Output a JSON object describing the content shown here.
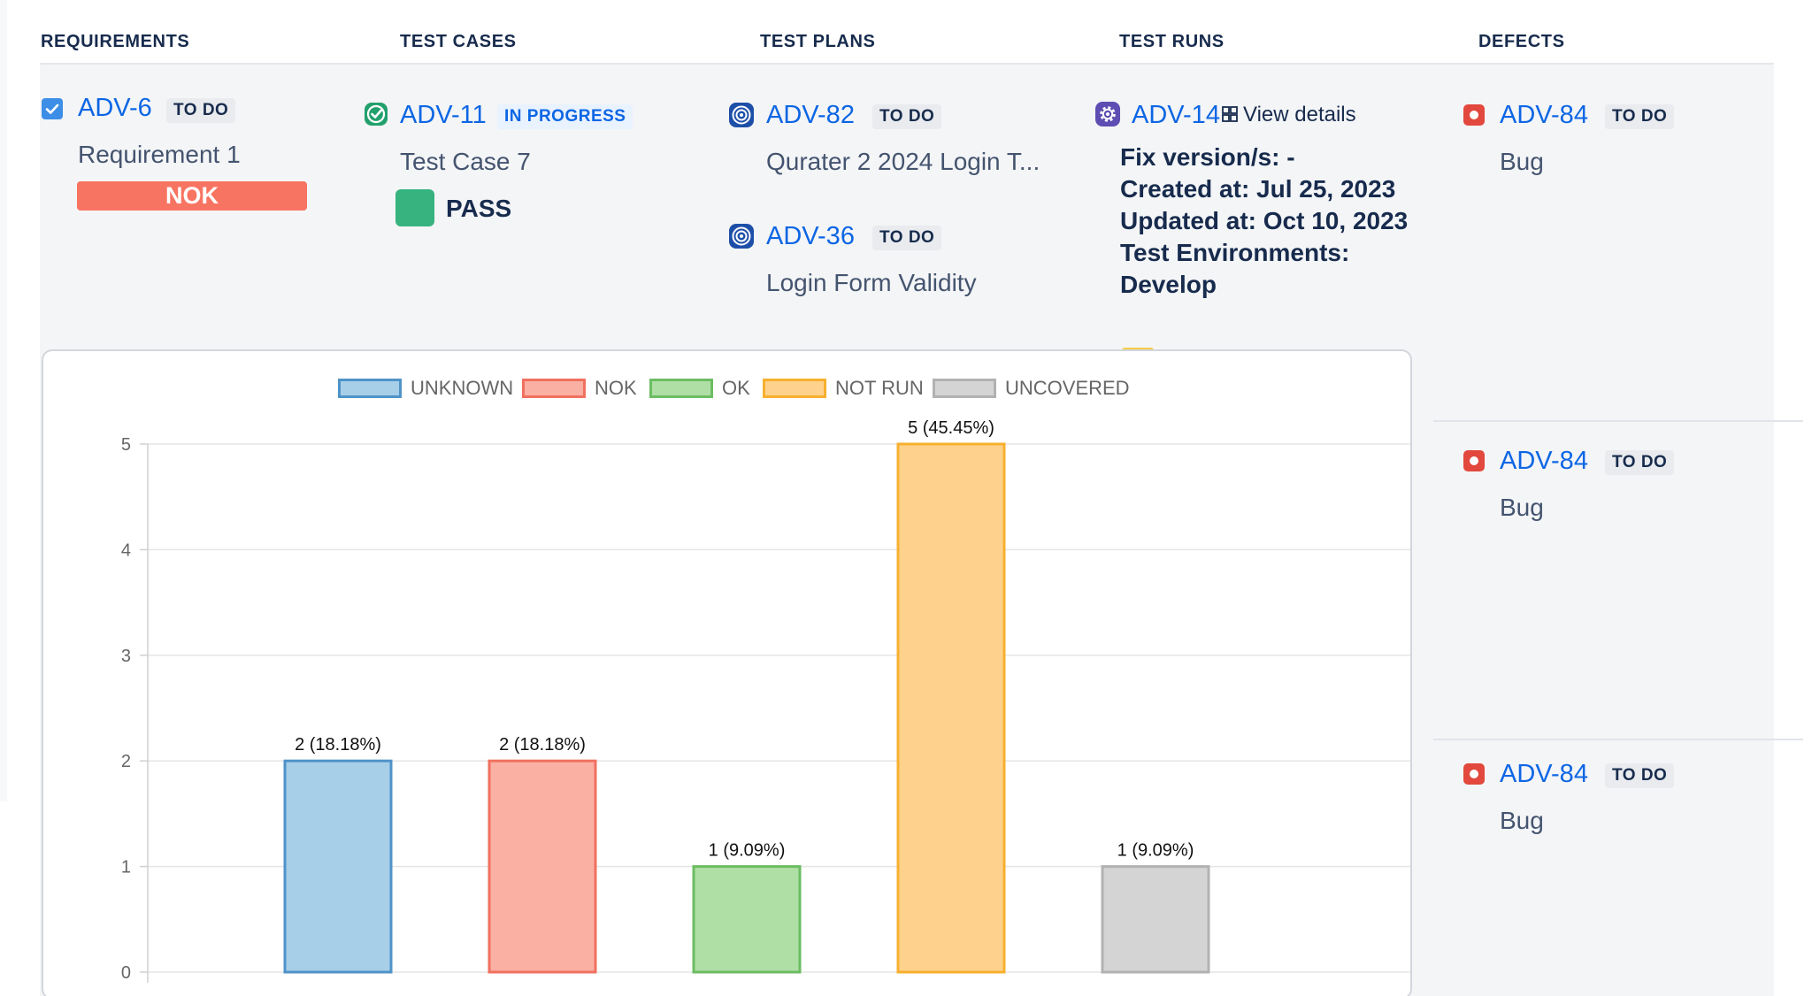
{
  "columns": {
    "requirements": "REQUIREMENTS",
    "test_cases": "TEST CASES",
    "test_plans": "TEST PLANS",
    "test_runs": "TEST RUNS",
    "defects": "DEFECTS"
  },
  "requirement": {
    "key": "ADV-6",
    "status": "TO DO",
    "summary": "Requirement 1",
    "coverage": "NOK"
  },
  "test_case": {
    "key": "ADV-11",
    "status": "IN PROGRESS",
    "summary": "Test Case 7",
    "result": "PASS"
  },
  "test_plans": [
    {
      "key": "ADV-82",
      "status": "TO DO",
      "summary": "Qurater 2 2024 Login T..."
    },
    {
      "key": "ADV-36",
      "status": "TO DO",
      "summary": "Login Form Validity"
    }
  ],
  "test_run": {
    "key": "ADV-14",
    "view_details": "View details",
    "fix_versions": "Fix version/s: -",
    "created": "Created at: Jul 25, 2023",
    "updated": "Updated at: Oct 10, 2023",
    "environments": "Test Environments: Develop"
  },
  "defects": [
    {
      "key": "ADV-84",
      "status": "TO DO",
      "summary": "Bug"
    },
    {
      "key": "ADV-84",
      "status": "TO DO",
      "summary": "Bug"
    },
    {
      "key": "ADV-84",
      "status": "TO DO",
      "summary": "Bug"
    }
  ],
  "colors": {
    "link": "#0c66e4",
    "nok": "#f87462",
    "pass": "#36b37e",
    "bug": "#e2483d",
    "plan_icon": "#1d4fa8",
    "run_icon": "#5e4db2",
    "case_icon": "#22a06b"
  },
  "icons": {
    "requirement": "checkbox-icon",
    "test_case": "check-circle-icon",
    "test_plan": "target-icon",
    "test_run": "gear-icon",
    "defect": "bug-icon",
    "view_details": "grid-icon"
  },
  "chart_data": {
    "type": "bar",
    "categories": [
      "UNKNOWN",
      "NOK",
      "OK",
      "NOT RUN",
      "UNCOVERED"
    ],
    "values": [
      2,
      2,
      1,
      5,
      1
    ],
    "data_labels": [
      "2 (18.18%)",
      "2 (18.18%)",
      "1 (9.09%)",
      "5 (45.45%)",
      "1 (9.09%)"
    ],
    "legend": [
      "UNKNOWN",
      "NOK",
      "OK",
      "NOT RUN",
      "UNCOVERED"
    ],
    "legend_position": "top-center",
    "colors": [
      {
        "fill": "#a8cfe8",
        "stroke": "#4f93c8"
      },
      {
        "fill": "#fbb0a4",
        "stroke": "#f0715f"
      },
      {
        "fill": "#b0dfa6",
        "stroke": "#6cbd62"
      },
      {
        "fill": "#fed28d",
        "stroke": "#f7b02e"
      },
      {
        "fill": "#d4d4d4",
        "stroke": "#b2b2b2"
      }
    ],
    "y_ticks": [
      "0",
      "1",
      "2",
      "3",
      "4",
      "5"
    ],
    "ylim": [
      0,
      5
    ],
    "grid": true,
    "title": "",
    "xlabel": "",
    "ylabel": ""
  }
}
